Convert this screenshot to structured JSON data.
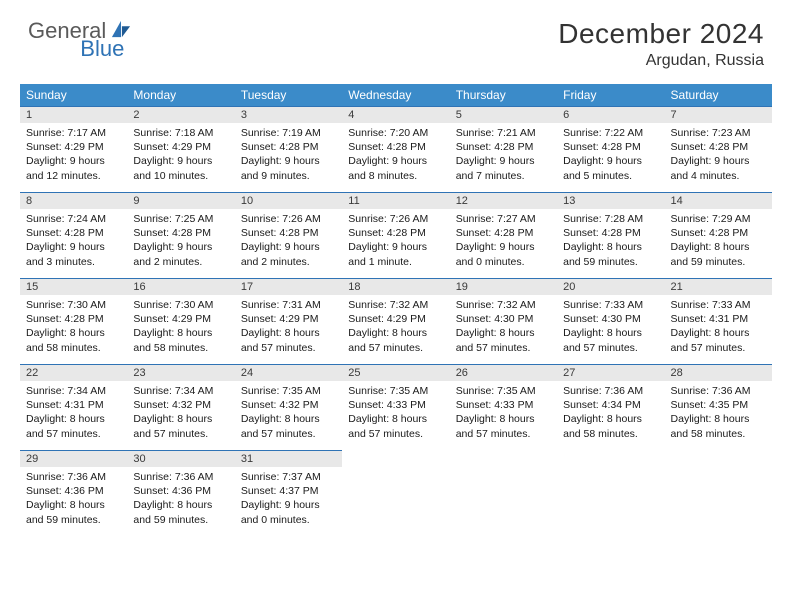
{
  "brand": {
    "text1": "General",
    "text2": "Blue"
  },
  "title": "December 2024",
  "location": "Argudan, Russia",
  "weekdays": [
    "Sunday",
    "Monday",
    "Tuesday",
    "Wednesday",
    "Thursday",
    "Friday",
    "Saturday"
  ],
  "colors": {
    "header_bg": "#3b8bc9",
    "header_text": "#ffffff",
    "daynum_bg": "#e8e8e8",
    "daynum_border": "#2f73b5",
    "body_text": "#1a1a1a",
    "title_text": "#333333",
    "logo_gray": "#5a5a5a",
    "logo_blue": "#2f73b5",
    "background": "#ffffff"
  },
  "fonts": {
    "title_size": 28,
    "location_size": 16,
    "weekday_size": 12,
    "daynum_size": 11,
    "body_size": 10.5
  },
  "weeks": [
    [
      {
        "n": "1",
        "sunrise": "7:17 AM",
        "sunset": "4:29 PM",
        "dl": "9 hours and 12 minutes."
      },
      {
        "n": "2",
        "sunrise": "7:18 AM",
        "sunset": "4:29 PM",
        "dl": "9 hours and 10 minutes."
      },
      {
        "n": "3",
        "sunrise": "7:19 AM",
        "sunset": "4:28 PM",
        "dl": "9 hours and 9 minutes."
      },
      {
        "n": "4",
        "sunrise": "7:20 AM",
        "sunset": "4:28 PM",
        "dl": "9 hours and 8 minutes."
      },
      {
        "n": "5",
        "sunrise": "7:21 AM",
        "sunset": "4:28 PM",
        "dl": "9 hours and 7 minutes."
      },
      {
        "n": "6",
        "sunrise": "7:22 AM",
        "sunset": "4:28 PM",
        "dl": "9 hours and 5 minutes."
      },
      {
        "n": "7",
        "sunrise": "7:23 AM",
        "sunset": "4:28 PM",
        "dl": "9 hours and 4 minutes."
      }
    ],
    [
      {
        "n": "8",
        "sunrise": "7:24 AM",
        "sunset": "4:28 PM",
        "dl": "9 hours and 3 minutes."
      },
      {
        "n": "9",
        "sunrise": "7:25 AM",
        "sunset": "4:28 PM",
        "dl": "9 hours and 2 minutes."
      },
      {
        "n": "10",
        "sunrise": "7:26 AM",
        "sunset": "4:28 PM",
        "dl": "9 hours and 2 minutes."
      },
      {
        "n": "11",
        "sunrise": "7:26 AM",
        "sunset": "4:28 PM",
        "dl": "9 hours and 1 minute."
      },
      {
        "n": "12",
        "sunrise": "7:27 AM",
        "sunset": "4:28 PM",
        "dl": "9 hours and 0 minutes."
      },
      {
        "n": "13",
        "sunrise": "7:28 AM",
        "sunset": "4:28 PM",
        "dl": "8 hours and 59 minutes."
      },
      {
        "n": "14",
        "sunrise": "7:29 AM",
        "sunset": "4:28 PM",
        "dl": "8 hours and 59 minutes."
      }
    ],
    [
      {
        "n": "15",
        "sunrise": "7:30 AM",
        "sunset": "4:28 PM",
        "dl": "8 hours and 58 minutes."
      },
      {
        "n": "16",
        "sunrise": "7:30 AM",
        "sunset": "4:29 PM",
        "dl": "8 hours and 58 minutes."
      },
      {
        "n": "17",
        "sunrise": "7:31 AM",
        "sunset": "4:29 PM",
        "dl": "8 hours and 57 minutes."
      },
      {
        "n": "18",
        "sunrise": "7:32 AM",
        "sunset": "4:29 PM",
        "dl": "8 hours and 57 minutes."
      },
      {
        "n": "19",
        "sunrise": "7:32 AM",
        "sunset": "4:30 PM",
        "dl": "8 hours and 57 minutes."
      },
      {
        "n": "20",
        "sunrise": "7:33 AM",
        "sunset": "4:30 PM",
        "dl": "8 hours and 57 minutes."
      },
      {
        "n": "21",
        "sunrise": "7:33 AM",
        "sunset": "4:31 PM",
        "dl": "8 hours and 57 minutes."
      }
    ],
    [
      {
        "n": "22",
        "sunrise": "7:34 AM",
        "sunset": "4:31 PM",
        "dl": "8 hours and 57 minutes."
      },
      {
        "n": "23",
        "sunrise": "7:34 AM",
        "sunset": "4:32 PM",
        "dl": "8 hours and 57 minutes."
      },
      {
        "n": "24",
        "sunrise": "7:35 AM",
        "sunset": "4:32 PM",
        "dl": "8 hours and 57 minutes."
      },
      {
        "n": "25",
        "sunrise": "7:35 AM",
        "sunset": "4:33 PM",
        "dl": "8 hours and 57 minutes."
      },
      {
        "n": "26",
        "sunrise": "7:35 AM",
        "sunset": "4:33 PM",
        "dl": "8 hours and 57 minutes."
      },
      {
        "n": "27",
        "sunrise": "7:36 AM",
        "sunset": "4:34 PM",
        "dl": "8 hours and 58 minutes."
      },
      {
        "n": "28",
        "sunrise": "7:36 AM",
        "sunset": "4:35 PM",
        "dl": "8 hours and 58 minutes."
      }
    ],
    [
      {
        "n": "29",
        "sunrise": "7:36 AM",
        "sunset": "4:36 PM",
        "dl": "8 hours and 59 minutes."
      },
      {
        "n": "30",
        "sunrise": "7:36 AM",
        "sunset": "4:36 PM",
        "dl": "8 hours and 59 minutes."
      },
      {
        "n": "31",
        "sunrise": "7:37 AM",
        "sunset": "4:37 PM",
        "dl": "9 hours and 0 minutes."
      },
      null,
      null,
      null,
      null
    ]
  ]
}
